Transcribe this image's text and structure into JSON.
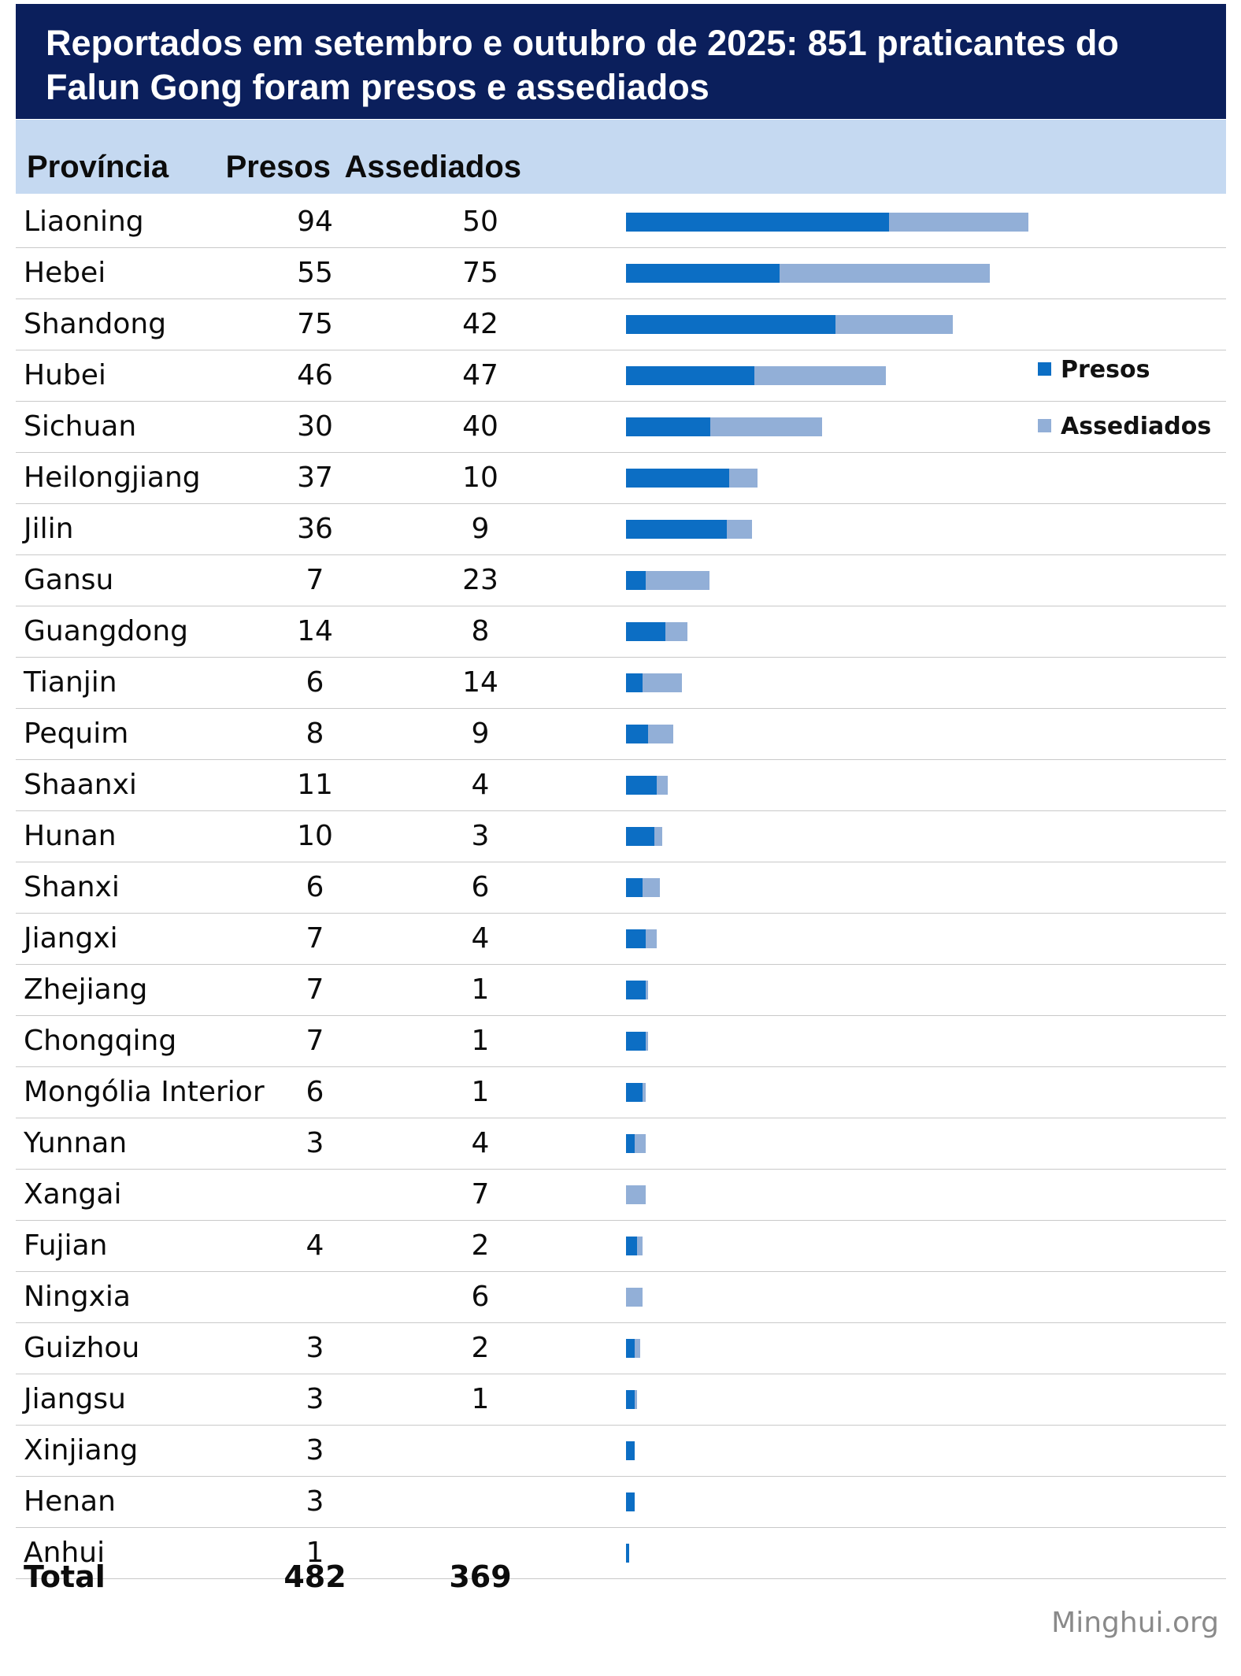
{
  "title": "Reportados em setembro e outubro de 2025: 851 praticantes do Falun Gong foram presos e assediados",
  "headers": {
    "province": "Província",
    "presos": "Presos",
    "assediados": "Assediados"
  },
  "legend": {
    "presos": "Presos",
    "assediados": "Assediados"
  },
  "total": {
    "label": "Total",
    "presos": "482",
    "assediados": "369"
  },
  "watermark": "Minghui.org",
  "colors": {
    "title_bg": "#0b1f5c",
    "header_bg": "#c5d9f1",
    "presos": "#0c6ec4",
    "assediados": "#92afd7"
  },
  "chart_data": {
    "type": "bar",
    "orientation": "horizontal",
    "stacked": true,
    "categories": [
      "Liaoning",
      "Hebei",
      "Shandong",
      "Hubei",
      "Sichuan",
      "Heilongjiang",
      "Jilin",
      "Gansu",
      "Guangdong",
      "Tianjin",
      "Pequim",
      "Shaanxi",
      "Hunan",
      "Shanxi",
      "Jiangxi",
      "Zhejiang",
      "Chongqing",
      "Mongólia Interior",
      "Yunnan",
      "Xangai",
      "Fujian",
      "Ningxia",
      "Guizhou",
      "Jiangsu",
      "Xinjiang",
      "Henan",
      "Anhui"
    ],
    "series": [
      {
        "name": "Presos",
        "values": [
          94,
          55,
          75,
          46,
          30,
          37,
          36,
          7,
          14,
          6,
          8,
          11,
          10,
          6,
          7,
          7,
          7,
          6,
          3,
          null,
          4,
          null,
          3,
          3,
          3,
          3,
          1
        ]
      },
      {
        "name": "Assediados",
        "values": [
          50,
          75,
          42,
          47,
          40,
          10,
          9,
          23,
          8,
          14,
          9,
          4,
          3,
          6,
          4,
          1,
          1,
          1,
          4,
          7,
          2,
          6,
          2,
          1,
          null,
          null,
          null
        ]
      }
    ],
    "legend_position": "right"
  }
}
